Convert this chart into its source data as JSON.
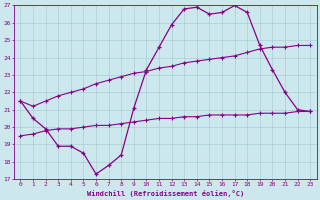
{
  "x": [
    0,
    1,
    2,
    3,
    4,
    5,
    6,
    7,
    8,
    9,
    10,
    11,
    12,
    13,
    14,
    15,
    16,
    17,
    18,
    19,
    20,
    21,
    22,
    23
  ],
  "line1": [
    21.5,
    20.5,
    19.9,
    18.9,
    18.9,
    18.5,
    17.3,
    17.8,
    18.4,
    21.1,
    23.3,
    24.6,
    25.9,
    26.8,
    26.9,
    26.5,
    26.6,
    27.0,
    26.6,
    24.7,
    23.3,
    22.0,
    21.0,
    20.9
  ],
  "line2": [
    21.5,
    21.2,
    21.5,
    21.8,
    22.0,
    22.2,
    22.5,
    22.7,
    22.9,
    23.1,
    23.2,
    23.4,
    23.5,
    23.7,
    23.8,
    23.9,
    24.0,
    24.1,
    24.3,
    24.5,
    24.6,
    24.6,
    24.7,
    24.7
  ],
  "line3": [
    19.5,
    19.6,
    19.8,
    19.9,
    19.9,
    20.0,
    20.1,
    20.1,
    20.2,
    20.3,
    20.4,
    20.5,
    20.5,
    20.6,
    20.6,
    20.7,
    20.7,
    20.7,
    20.7,
    20.8,
    20.8,
    20.8,
    20.9,
    20.9
  ],
  "line_color": "#880088",
  "bg_color": "#cce8ec",
  "grid_color": "#aacdd4",
  "xlabel": "Windchill (Refroidissement éolien,°C)",
  "ylim": [
    17,
    27
  ],
  "xlim": [
    -0.5,
    23.5
  ],
  "yticks": [
    17,
    18,
    19,
    20,
    21,
    22,
    23,
    24,
    25,
    26,
    27
  ],
  "xticks": [
    0,
    1,
    2,
    3,
    4,
    5,
    6,
    7,
    8,
    9,
    10,
    11,
    12,
    13,
    14,
    15,
    16,
    17,
    18,
    19,
    20,
    21,
    22,
    23
  ]
}
